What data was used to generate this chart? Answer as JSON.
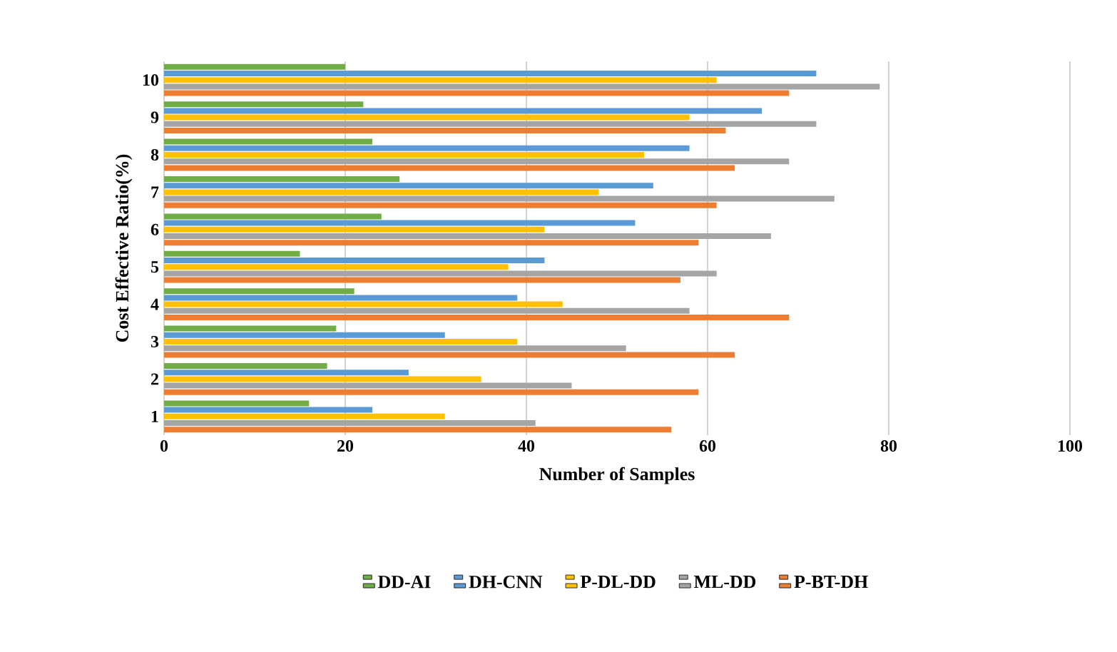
{
  "chart_data": {
    "type": "bar",
    "orientation": "horizontal",
    "xlabel": "Number of Samples",
    "ylabel": "Cost Effective Ratio(%)",
    "categories": [
      "10",
      "9",
      "8",
      "7",
      "6",
      "5",
      "4",
      "3",
      "2",
      "1"
    ],
    "xlim": [
      0,
      100
    ],
    "xticks": [
      0,
      20,
      40,
      60,
      80,
      100
    ],
    "grid": "x",
    "legend": "bottom",
    "series": [
      {
        "name": "DD-AI",
        "color": "#70ad47",
        "values": [
          20,
          22,
          23,
          26,
          24,
          15,
          21,
          19,
          18,
          16
        ]
      },
      {
        "name": "DH-CNN",
        "color": "#5b9bd5",
        "values": [
          72,
          66,
          58,
          54,
          52,
          42,
          39,
          31,
          27,
          23
        ]
      },
      {
        "name": "P-DL-DD",
        "color": "#ffc000",
        "values": [
          61,
          58,
          53,
          48,
          42,
          38,
          44,
          39,
          35,
          31
        ]
      },
      {
        "name": "ML-DD",
        "color": "#a5a5a5",
        "values": [
          79,
          72,
          69,
          74,
          67,
          61,
          58,
          51,
          45,
          41
        ]
      },
      {
        "name": "P-BT-DH",
        "color": "#ed7d31",
        "values": [
          69,
          62,
          63,
          61,
          59,
          57,
          69,
          63,
          59,
          56
        ]
      }
    ]
  }
}
